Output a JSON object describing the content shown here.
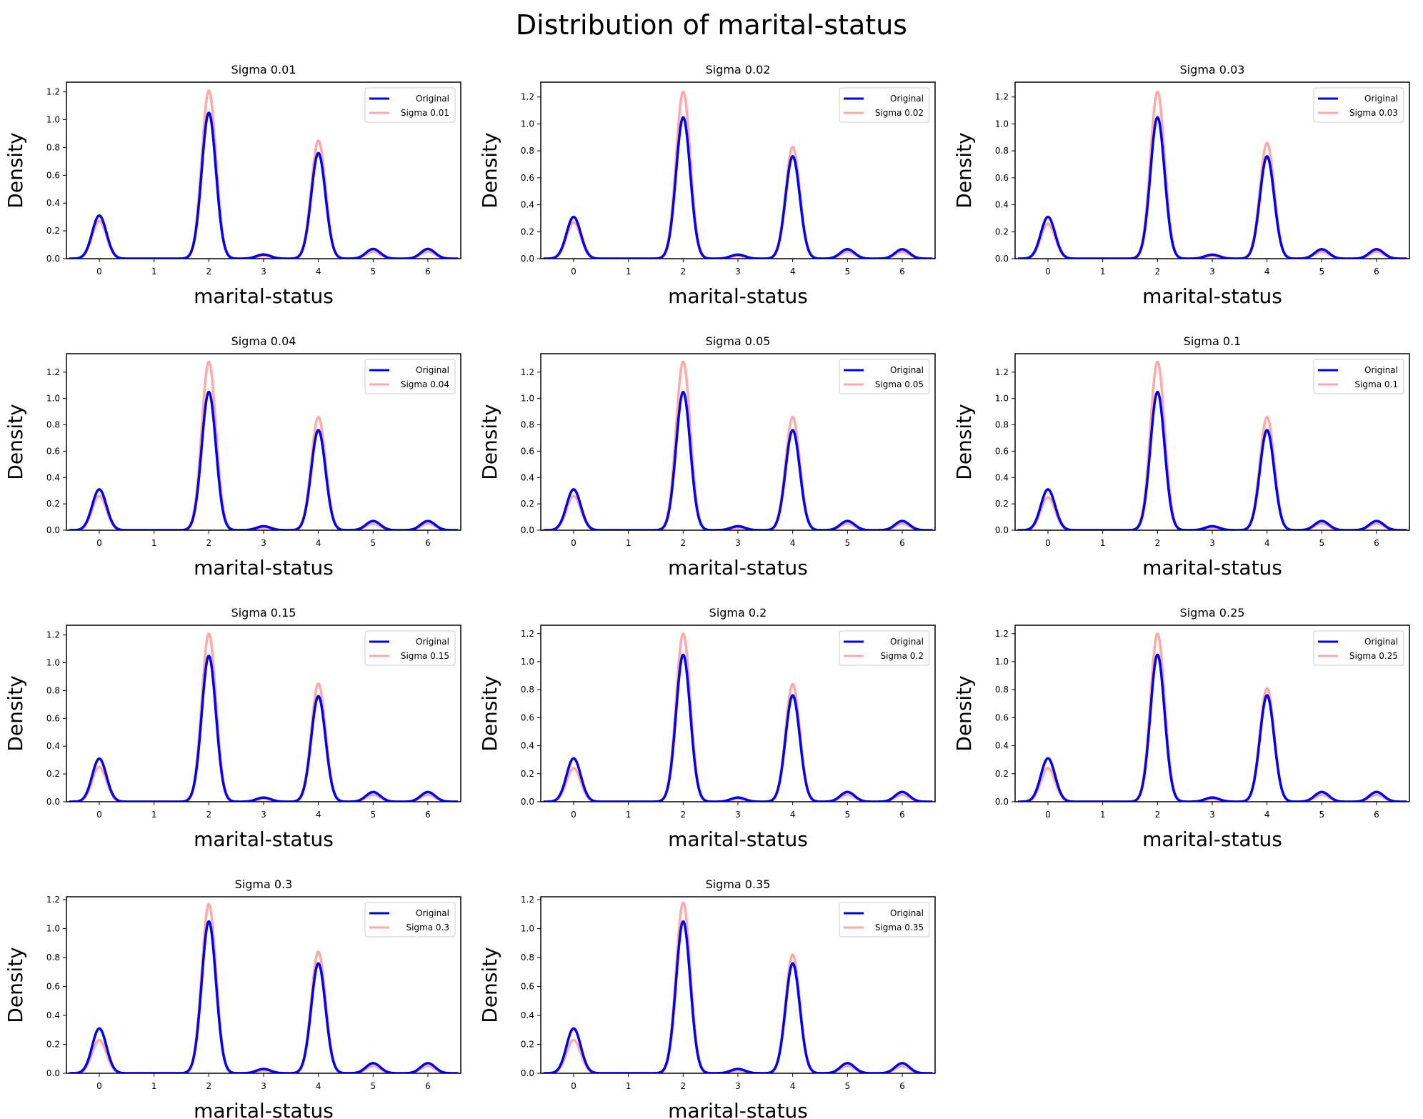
{
  "figure": {
    "title": "Distribution of marital-status"
  },
  "colors": {
    "original": "#0000ff",
    "sigma": "#ffaaaa"
  },
  "chart_data": [
    {
      "type": "line",
      "title": "Sigma 0.01",
      "xlabel": "marital-status",
      "ylabel": "Density",
      "xlim": [
        -0.6,
        6.6
      ],
      "ylim": [
        0,
        1.27
      ],
      "x_ticks": [
        0,
        1,
        2,
        3,
        4,
        5,
        6
      ],
      "y_ticks": [
        0.0,
        0.2,
        0.4,
        0.6,
        0.8,
        1.0,
        1.2
      ],
      "legend_position": "upper-right",
      "grid": false,
      "series": [
        {
          "name": "Original",
          "peaks": [
            {
              "x": 0,
              "y": 0.31
            },
            {
              "x": 2,
              "y": 1.05
            },
            {
              "x": 3,
              "y": 0.03
            },
            {
              "x": 4,
              "y": 0.76
            },
            {
              "x": 5,
              "y": 0.07
            },
            {
              "x": 6,
              "y": 0.07
            }
          ]
        },
        {
          "name": "Sigma 0.01",
          "peaks": [
            {
              "x": 0,
              "y": 0.27
            },
            {
              "x": 2,
              "y": 1.21
            },
            {
              "x": 3,
              "y": 0.02
            },
            {
              "x": 4,
              "y": 0.85
            },
            {
              "x": 5,
              "y": 0.05
            },
            {
              "x": 6,
              "y": 0.05
            }
          ]
        }
      ]
    },
    {
      "type": "line",
      "title": "Sigma 0.02",
      "xlabel": "marital-status",
      "ylabel": "Density",
      "xlim": [
        -0.6,
        6.6
      ],
      "ylim": [
        0,
        1.31
      ],
      "x_ticks": [
        0,
        1,
        2,
        3,
        4,
        5,
        6
      ],
      "y_ticks": [
        0.0,
        0.2,
        0.4,
        0.6,
        0.8,
        1.0,
        1.2
      ],
      "legend_position": "upper-right",
      "grid": false,
      "series": [
        {
          "name": "Original",
          "peaks": [
            {
              "x": 0,
              "y": 0.31
            },
            {
              "x": 2,
              "y": 1.05
            },
            {
              "x": 3,
              "y": 0.03
            },
            {
              "x": 4,
              "y": 0.76
            },
            {
              "x": 5,
              "y": 0.07
            },
            {
              "x": 6,
              "y": 0.07
            }
          ]
        },
        {
          "name": "Sigma 0.02",
          "peaks": [
            {
              "x": 0,
              "y": 0.27
            },
            {
              "x": 2,
              "y": 1.24
            },
            {
              "x": 3,
              "y": 0.02
            },
            {
              "x": 4,
              "y": 0.83
            },
            {
              "x": 5,
              "y": 0.05
            },
            {
              "x": 6,
              "y": 0.05
            }
          ]
        }
      ]
    },
    {
      "type": "line",
      "title": "Sigma 0.03",
      "xlabel": "marital-status",
      "ylabel": "Density",
      "xlim": [
        -0.6,
        6.6
      ],
      "ylim": [
        0,
        1.31
      ],
      "x_ticks": [
        0,
        1,
        2,
        3,
        4,
        5,
        6
      ],
      "y_ticks": [
        0.0,
        0.2,
        0.4,
        0.6,
        0.8,
        1.0,
        1.2
      ],
      "legend_position": "upper-right",
      "grid": false,
      "series": [
        {
          "name": "Original",
          "peaks": [
            {
              "x": 0,
              "y": 0.31
            },
            {
              "x": 2,
              "y": 1.05
            },
            {
              "x": 3,
              "y": 0.03
            },
            {
              "x": 4,
              "y": 0.76
            },
            {
              "x": 5,
              "y": 0.07
            },
            {
              "x": 6,
              "y": 0.07
            }
          ]
        },
        {
          "name": "Sigma 0.03",
          "peaks": [
            {
              "x": 0,
              "y": 0.26
            },
            {
              "x": 2,
              "y": 1.24
            },
            {
              "x": 3,
              "y": 0.02
            },
            {
              "x": 4,
              "y": 0.86
            },
            {
              "x": 5,
              "y": 0.05
            },
            {
              "x": 6,
              "y": 0.05
            }
          ]
        }
      ]
    },
    {
      "type": "line",
      "title": "Sigma 0.04",
      "xlabel": "marital-status",
      "ylabel": "Density",
      "xlim": [
        -0.6,
        6.6
      ],
      "ylim": [
        0,
        1.34
      ],
      "x_ticks": [
        0,
        1,
        2,
        3,
        4,
        5,
        6
      ],
      "y_ticks": [
        0.0,
        0.2,
        0.4,
        0.6,
        0.8,
        1.0,
        1.2
      ],
      "legend_position": "upper-right",
      "grid": false,
      "series": [
        {
          "name": "Original",
          "peaks": [
            {
              "x": 0,
              "y": 0.31
            },
            {
              "x": 2,
              "y": 1.05
            },
            {
              "x": 3,
              "y": 0.03
            },
            {
              "x": 4,
              "y": 0.76
            },
            {
              "x": 5,
              "y": 0.07
            },
            {
              "x": 6,
              "y": 0.07
            }
          ]
        },
        {
          "name": "Sigma 0.04",
          "peaks": [
            {
              "x": 0,
              "y": 0.26
            },
            {
              "x": 2,
              "y": 1.28
            },
            {
              "x": 3,
              "y": 0.02
            },
            {
              "x": 4,
              "y": 0.86
            },
            {
              "x": 5,
              "y": 0.05
            },
            {
              "x": 6,
              "y": 0.05
            }
          ]
        }
      ]
    },
    {
      "type": "line",
      "title": "Sigma 0.05",
      "xlabel": "marital-status",
      "ylabel": "Density",
      "xlim": [
        -0.6,
        6.6
      ],
      "ylim": [
        0,
        1.34
      ],
      "x_ticks": [
        0,
        1,
        2,
        3,
        4,
        5,
        6
      ],
      "y_ticks": [
        0.0,
        0.2,
        0.4,
        0.6,
        0.8,
        1.0,
        1.2
      ],
      "legend_position": "upper-right",
      "grid": false,
      "series": [
        {
          "name": "Original",
          "peaks": [
            {
              "x": 0,
              "y": 0.31
            },
            {
              "x": 2,
              "y": 1.05
            },
            {
              "x": 3,
              "y": 0.03
            },
            {
              "x": 4,
              "y": 0.76
            },
            {
              "x": 5,
              "y": 0.07
            },
            {
              "x": 6,
              "y": 0.07
            }
          ]
        },
        {
          "name": "Sigma 0.05",
          "peaks": [
            {
              "x": 0,
              "y": 0.26
            },
            {
              "x": 2,
              "y": 1.28
            },
            {
              "x": 3,
              "y": 0.02
            },
            {
              "x": 4,
              "y": 0.86
            },
            {
              "x": 5,
              "y": 0.05
            },
            {
              "x": 6,
              "y": 0.05
            }
          ]
        }
      ]
    },
    {
      "type": "line",
      "title": "Sigma 0.1",
      "xlabel": "marital-status",
      "ylabel": "Density",
      "xlim": [
        -0.6,
        6.6
      ],
      "ylim": [
        0,
        1.34
      ],
      "x_ticks": [
        0,
        1,
        2,
        3,
        4,
        5,
        6
      ],
      "y_ticks": [
        0.0,
        0.2,
        0.4,
        0.6,
        0.8,
        1.0,
        1.2
      ],
      "legend_position": "upper-right",
      "grid": false,
      "series": [
        {
          "name": "Original",
          "peaks": [
            {
              "x": 0,
              "y": 0.31
            },
            {
              "x": 2,
              "y": 1.05
            },
            {
              "x": 3,
              "y": 0.03
            },
            {
              "x": 4,
              "y": 0.76
            },
            {
              "x": 5,
              "y": 0.07
            },
            {
              "x": 6,
              "y": 0.07
            }
          ]
        },
        {
          "name": "Sigma 0.1",
          "peaks": [
            {
              "x": 0,
              "y": 0.25
            },
            {
              "x": 2,
              "y": 1.28
            },
            {
              "x": 3,
              "y": 0.02
            },
            {
              "x": 4,
              "y": 0.86
            },
            {
              "x": 5,
              "y": 0.05
            },
            {
              "x": 6,
              "y": 0.05
            }
          ]
        }
      ]
    },
    {
      "type": "line",
      "title": "Sigma 0.15",
      "xlabel": "marital-status",
      "ylabel": "Density",
      "xlim": [
        -0.6,
        6.6
      ],
      "ylim": [
        0,
        1.27
      ],
      "x_ticks": [
        0,
        1,
        2,
        3,
        4,
        5,
        6
      ],
      "y_ticks": [
        0.0,
        0.2,
        0.4,
        0.6,
        0.8,
        1.0,
        1.2
      ],
      "legend_position": "upper-right",
      "grid": false,
      "series": [
        {
          "name": "Original",
          "peaks": [
            {
              "x": 0,
              "y": 0.31
            },
            {
              "x": 2,
              "y": 1.05
            },
            {
              "x": 3,
              "y": 0.03
            },
            {
              "x": 4,
              "y": 0.76
            },
            {
              "x": 5,
              "y": 0.07
            },
            {
              "x": 6,
              "y": 0.07
            }
          ]
        },
        {
          "name": "Sigma 0.15",
          "peaks": [
            {
              "x": 0,
              "y": 0.25
            },
            {
              "x": 2,
              "y": 1.21
            },
            {
              "x": 3,
              "y": 0.02
            },
            {
              "x": 4,
              "y": 0.85
            },
            {
              "x": 5,
              "y": 0.05
            },
            {
              "x": 6,
              "y": 0.05
            }
          ]
        }
      ]
    },
    {
      "type": "line",
      "title": "Sigma 0.2",
      "xlabel": "marital-status",
      "ylabel": "Density",
      "xlim": [
        -0.6,
        6.6
      ],
      "ylim": [
        0,
        1.26
      ],
      "x_ticks": [
        0,
        1,
        2,
        3,
        4,
        5,
        6
      ],
      "y_ticks": [
        0.0,
        0.2,
        0.4,
        0.6,
        0.8,
        1.0,
        1.2
      ],
      "legend_position": "upper-right",
      "grid": false,
      "series": [
        {
          "name": "Original",
          "peaks": [
            {
              "x": 0,
              "y": 0.31
            },
            {
              "x": 2,
              "y": 1.05
            },
            {
              "x": 3,
              "y": 0.03
            },
            {
              "x": 4,
              "y": 0.76
            },
            {
              "x": 5,
              "y": 0.07
            },
            {
              "x": 6,
              "y": 0.07
            }
          ]
        },
        {
          "name": "Sigma 0.2",
          "peaks": [
            {
              "x": 0,
              "y": 0.24
            },
            {
              "x": 2,
              "y": 1.2
            },
            {
              "x": 3,
              "y": 0.02
            },
            {
              "x": 4,
              "y": 0.84
            },
            {
              "x": 5,
              "y": 0.05
            },
            {
              "x": 6,
              "y": 0.05
            }
          ]
        }
      ]
    },
    {
      "type": "line",
      "title": "Sigma 0.25",
      "xlabel": "marital-status",
      "ylabel": "Density",
      "xlim": [
        -0.6,
        6.6
      ],
      "ylim": [
        0,
        1.26
      ],
      "x_ticks": [
        0,
        1,
        2,
        3,
        4,
        5,
        6
      ],
      "y_ticks": [
        0.0,
        0.2,
        0.4,
        0.6,
        0.8,
        1.0,
        1.2
      ],
      "legend_position": "upper-right",
      "grid": false,
      "series": [
        {
          "name": "Original",
          "peaks": [
            {
              "x": 0,
              "y": 0.31
            },
            {
              "x": 2,
              "y": 1.05
            },
            {
              "x": 3,
              "y": 0.03
            },
            {
              "x": 4,
              "y": 0.76
            },
            {
              "x": 5,
              "y": 0.07
            },
            {
              "x": 6,
              "y": 0.07
            }
          ]
        },
        {
          "name": "Sigma 0.25",
          "peaks": [
            {
              "x": 0,
              "y": 0.24
            },
            {
              "x": 2,
              "y": 1.2
            },
            {
              "x": 3,
              "y": 0.02
            },
            {
              "x": 4,
              "y": 0.81
            },
            {
              "x": 5,
              "y": 0.05
            },
            {
              "x": 6,
              "y": 0.05
            }
          ]
        }
      ]
    },
    {
      "type": "line",
      "title": "Sigma 0.3",
      "xlabel": "marital-status",
      "ylabel": "Density",
      "xlim": [
        -0.6,
        6.6
      ],
      "ylim": [
        0,
        1.22
      ],
      "x_ticks": [
        0,
        1,
        2,
        3,
        4,
        5,
        6
      ],
      "y_ticks": [
        0.0,
        0.2,
        0.4,
        0.6,
        0.8,
        1.0,
        1.2
      ],
      "legend_position": "upper-right",
      "grid": false,
      "series": [
        {
          "name": "Original",
          "peaks": [
            {
              "x": 0,
              "y": 0.31
            },
            {
              "x": 2,
              "y": 1.05
            },
            {
              "x": 3,
              "y": 0.03
            },
            {
              "x": 4,
              "y": 0.76
            },
            {
              "x": 5,
              "y": 0.07
            },
            {
              "x": 6,
              "y": 0.07
            }
          ]
        },
        {
          "name": "Sigma 0.3",
          "peaks": [
            {
              "x": 0,
              "y": 0.23
            },
            {
              "x": 2,
              "y": 1.17
            },
            {
              "x": 3,
              "y": 0.02
            },
            {
              "x": 4,
              "y": 0.84
            },
            {
              "x": 5,
              "y": 0.05
            },
            {
              "x": 6,
              "y": 0.05
            }
          ]
        }
      ]
    },
    {
      "type": "line",
      "title": "Sigma 0.35",
      "xlabel": "marital-status",
      "ylabel": "Density",
      "xlim": [
        -0.6,
        6.6
      ],
      "ylim": [
        0,
        1.22
      ],
      "x_ticks": [
        0,
        1,
        2,
        3,
        4,
        5,
        6
      ],
      "y_ticks": [
        0.0,
        0.2,
        0.4,
        0.6,
        0.8,
        1.0,
        1.2
      ],
      "legend_position": "upper-right",
      "grid": false,
      "series": [
        {
          "name": "Original",
          "peaks": [
            {
              "x": 0,
              "y": 0.31
            },
            {
              "x": 2,
              "y": 1.05
            },
            {
              "x": 3,
              "y": 0.03
            },
            {
              "x": 4,
              "y": 0.76
            },
            {
              "x": 5,
              "y": 0.07
            },
            {
              "x": 6,
              "y": 0.07
            }
          ]
        },
        {
          "name": "Sigma 0.35",
          "peaks": [
            {
              "x": 0,
              "y": 0.23
            },
            {
              "x": 2,
              "y": 1.18
            },
            {
              "x": 3,
              "y": 0.02
            },
            {
              "x": 4,
              "y": 0.82
            },
            {
              "x": 5,
              "y": 0.05
            },
            {
              "x": 6,
              "y": 0.05
            }
          ]
        }
      ]
    }
  ]
}
